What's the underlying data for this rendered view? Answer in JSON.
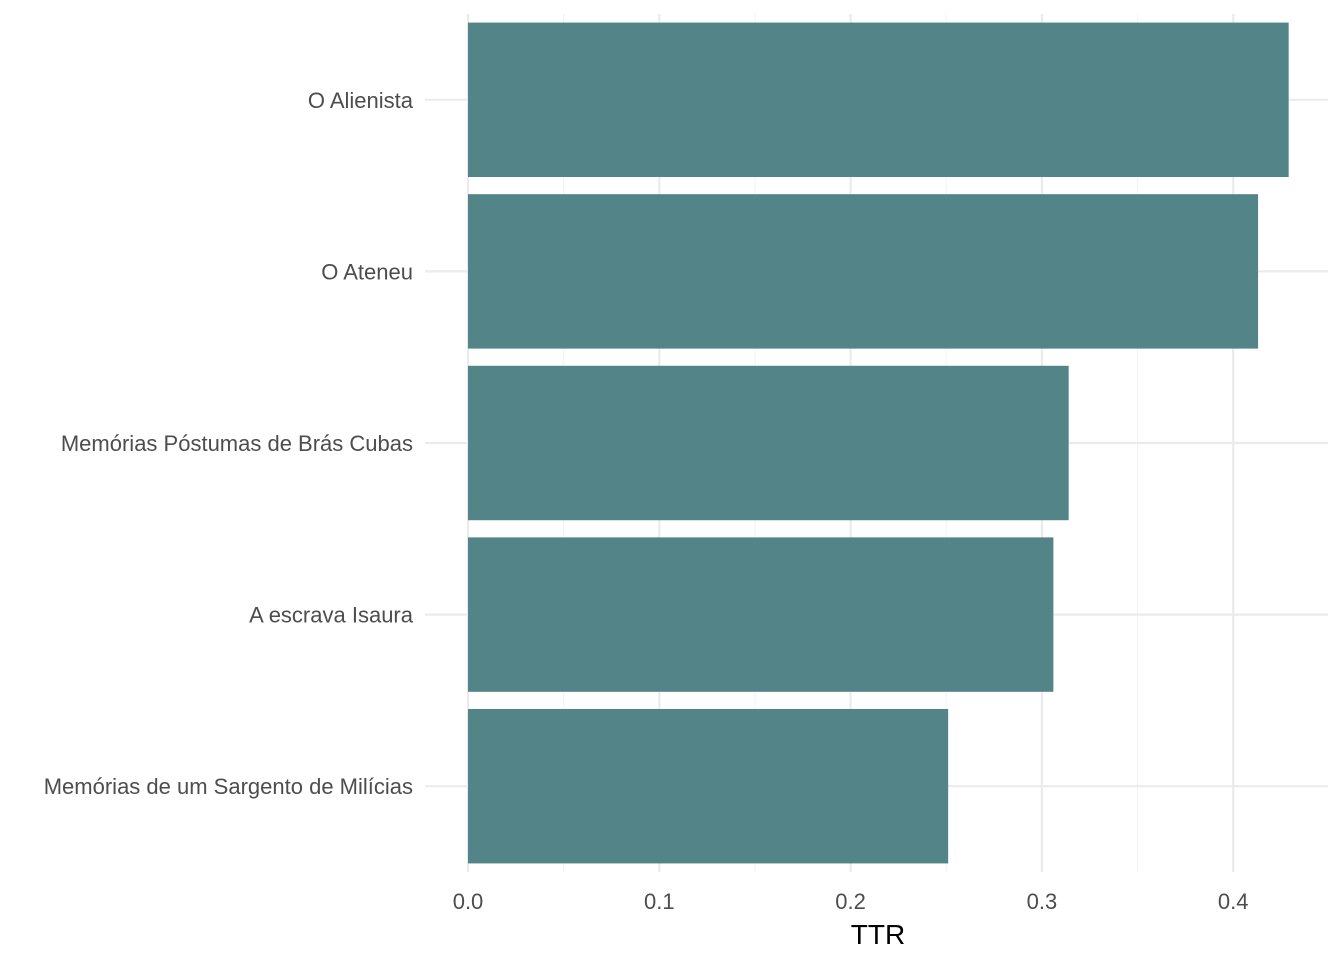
{
  "chart_data": {
    "type": "bar",
    "orientation": "horizontal",
    "categories": [
      "O Alienista",
      "O Ateneu",
      "Memórias Póstumas de Brás Cubas",
      "A escrava Isaura",
      "Memórias de um Sargento de Milícias"
    ],
    "values": [
      0.429,
      0.413,
      0.314,
      0.306,
      0.251
    ],
    "xlabel": "TTR",
    "ylabel": "",
    "xlim": [
      0,
      0.45
    ],
    "x_ticks": [
      0.0,
      0.1,
      0.2,
      0.3,
      0.4
    ],
    "x_tick_labels": [
      "0.0",
      "0.1",
      "0.2",
      "0.3",
      "0.4"
    ],
    "grid": true,
    "colors": {
      "bar": "#538588",
      "grid_major": "#ebebeb",
      "grid_minor": "#f4f4f4",
      "tick_text": "#4d4d4d"
    }
  }
}
